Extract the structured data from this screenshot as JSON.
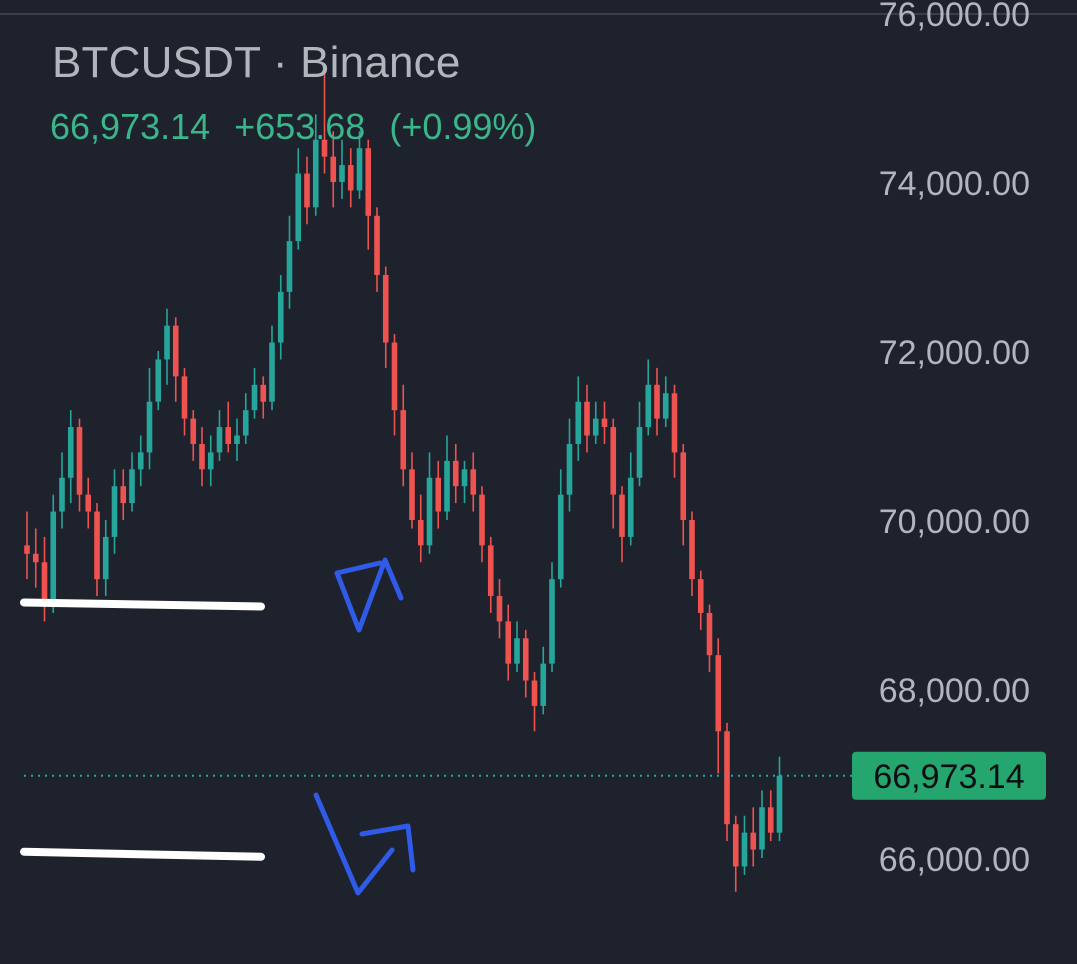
{
  "header": {
    "symbol": "BTCUSDT",
    "separator": "·",
    "exchange": "Binance",
    "last_price": "66,973.14",
    "change": "+653.68",
    "change_percent": "(+0.99%)"
  },
  "colors": {
    "background": "#1e222d",
    "up": "#26a69a",
    "up_text": "#3bb58a",
    "down": "#ef5350",
    "axis_text": "#b2b5be",
    "price_tag": "#26a66f",
    "annotation_blue": "#2f5be8",
    "annotation_white": "#ffffff"
  },
  "chart_data": {
    "type": "candlestick",
    "y_axis": {
      "ticks": [
        76000,
        74000,
        72000,
        70000,
        68000,
        66000
      ],
      "tick_labels": [
        "76,000.00",
        "74,000.00",
        "72,000.00",
        "70,000.00",
        "68,000.00",
        "66,000.00"
      ],
      "position": "right"
    },
    "ylim": [
      65000,
      76200
    ],
    "last_price_line": {
      "value": 66973.14,
      "label": "66,973.14",
      "style": "dotted"
    },
    "candles": [
      [
        69700,
        69600,
        70100,
        69300
      ],
      [
        69600,
        69500,
        69900,
        69200
      ],
      [
        69500,
        69000,
        69800,
        68800
      ],
      [
        69000,
        70100,
        70300,
        68900
      ],
      [
        70100,
        70500,
        70800,
        69900
      ],
      [
        70500,
        71100,
        71300,
        70200
      ],
      [
        71100,
        70300,
        71200,
        70100
      ],
      [
        70300,
        70100,
        70500,
        69900
      ],
      [
        70100,
        69300,
        70200,
        69100
      ],
      [
        69300,
        69800,
        70000,
        69100
      ],
      [
        69800,
        70400,
        70600,
        69600
      ],
      [
        70400,
        70200,
        70600,
        70000
      ],
      [
        70200,
        70600,
        70800,
        70100
      ],
      [
        70600,
        70800,
        71000,
        70400
      ],
      [
        70800,
        71400,
        71800,
        70600
      ],
      [
        71400,
        71900,
        72000,
        71300
      ],
      [
        71900,
        72300,
        72500,
        71600
      ],
      [
        72300,
        71700,
        72400,
        71400
      ],
      [
        71700,
        71200,
        71800,
        71000
      ],
      [
        71200,
        70900,
        71300,
        70700
      ],
      [
        70900,
        70600,
        71100,
        70400
      ],
      [
        70600,
        70800,
        71000,
        70400
      ],
      [
        70800,
        71100,
        71300,
        70700
      ],
      [
        71100,
        70900,
        71400,
        70800
      ],
      [
        70900,
        71000,
        71200,
        70700
      ],
      [
        71000,
        71300,
        71500,
        70900
      ],
      [
        71300,
        71600,
        71800,
        71200
      ],
      [
        71600,
        71400,
        71700,
        71200
      ],
      [
        71400,
        72100,
        72300,
        71300
      ],
      [
        72100,
        72700,
        72900,
        71900
      ],
      [
        72700,
        73300,
        73600,
        72500
      ],
      [
        73300,
        74100,
        74400,
        73200
      ],
      [
        74100,
        73700,
        74300,
        73500
      ],
      [
        73700,
        74500,
        74800,
        73600
      ],
      [
        74500,
        74300,
        75400,
        74100
      ],
      [
        74300,
        74000,
        74600,
        73700
      ],
      [
        74000,
        74200,
        74500,
        73800
      ],
      [
        74200,
        73900,
        74400,
        73700
      ],
      [
        73900,
        74400,
        74600,
        73800
      ],
      [
        74400,
        73600,
        74500,
        73200
      ],
      [
        73600,
        72900,
        73700,
        72700
      ],
      [
        72900,
        72100,
        73000,
        71800
      ],
      [
        72100,
        71300,
        72200,
        71000
      ],
      [
        71300,
        70600,
        71600,
        70400
      ],
      [
        70600,
        70000,
        70800,
        69900
      ],
      [
        70000,
        69700,
        70300,
        69500
      ],
      [
        69700,
        70500,
        70800,
        69600
      ],
      [
        70500,
        70100,
        70700,
        69900
      ],
      [
        70100,
        70700,
        71000,
        70000
      ],
      [
        70700,
        70400,
        70900,
        70200
      ],
      [
        70400,
        70600,
        70700,
        70200
      ],
      [
        70600,
        70300,
        70800,
        70100
      ],
      [
        70300,
        69700,
        70400,
        69500
      ],
      [
        69700,
        69100,
        69800,
        68900
      ],
      [
        69100,
        68800,
        69300,
        68600
      ],
      [
        68800,
        68300,
        69000,
        68100
      ],
      [
        68300,
        68600,
        68800,
        68200
      ],
      [
        68600,
        68100,
        68700,
        67900
      ],
      [
        68100,
        67800,
        68200,
        67500
      ],
      [
        67800,
        68300,
        68500,
        67700
      ],
      [
        68300,
        69300,
        69500,
        68200
      ],
      [
        69300,
        70300,
        70600,
        69200
      ],
      [
        70300,
        70900,
        71200,
        70100
      ],
      [
        70900,
        71400,
        71700,
        70700
      ],
      [
        71400,
        71000,
        71600,
        70800
      ],
      [
        71000,
        71200,
        71400,
        70900
      ],
      [
        71200,
        71100,
        71400,
        70900
      ],
      [
        71100,
        70300,
        71200,
        69900
      ],
      [
        70300,
        69800,
        70400,
        69500
      ],
      [
        69800,
        70500,
        70800,
        69700
      ],
      [
        70500,
        71100,
        71400,
        70400
      ],
      [
        71100,
        71600,
        71900,
        71000
      ],
      [
        71600,
        71200,
        71800,
        71000
      ],
      [
        71200,
        71500,
        71700,
        71100
      ],
      [
        71500,
        70800,
        71600,
        70500
      ],
      [
        70800,
        70000,
        70900,
        69700
      ],
      [
        70000,
        69300,
        70100,
        69100
      ],
      [
        69300,
        68900,
        69400,
        68700
      ],
      [
        68900,
        68400,
        69000,
        68200
      ],
      [
        68400,
        67500,
        68600,
        67000
      ],
      [
        67500,
        66400,
        67600,
        66200
      ],
      [
        66400,
        65900,
        66500,
        65600
      ],
      [
        65900,
        66300,
        66500,
        65800
      ],
      [
        66300,
        66100,
        66600,
        65900
      ],
      [
        66100,
        66600,
        66800,
        66000
      ],
      [
        66600,
        66300,
        66800,
        66200
      ],
      [
        66300,
        66973,
        67200,
        66200
      ]
    ],
    "annotations": [
      {
        "type": "line",
        "color": "white",
        "level": 69000
      },
      {
        "type": "line",
        "color": "white",
        "level": 66050
      },
      {
        "type": "arrow",
        "color": "blue",
        "shape": "upper"
      },
      {
        "type": "arrow",
        "color": "blue",
        "shape": "lower"
      }
    ]
  }
}
